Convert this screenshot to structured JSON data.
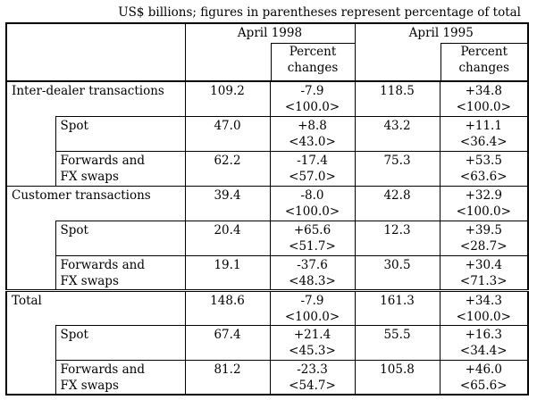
{
  "note": "US$ billions; figures in parentheses represent percentage of total",
  "headers": {
    "year1": "April 1998",
    "year2": "April 1995",
    "pc1_line1": "Percent",
    "pc1_line2": "changes",
    "pc2_line1": "Percent",
    "pc2_line2": "changes"
  },
  "rows": [
    {
      "label1": "Inter-dealer transactions",
      "label2": "",
      "v1": "109.2",
      "p1a": "-7.9",
      "p1b": "<100.0>",
      "v2": "118.5",
      "p2a": "+34.8",
      "p2b": "<100.0>"
    },
    {
      "label1": "Spot",
      "label2": "",
      "v1": "47.0",
      "p1a": "+8.8",
      "p1b": "<43.0>",
      "v2": "43.2",
      "p2a": "+11.1",
      "p2b": "<36.4>"
    },
    {
      "label1": "Forwards and",
      "label2": "FX swaps",
      "v1": "62.2",
      "p1a": "-17.4",
      "p1b": "<57.0>",
      "v2": "75.3",
      "p2a": "+53.5",
      "p2b": "<63.6>"
    },
    {
      "label1": "Customer transactions",
      "label2": "",
      "v1": "39.4",
      "p1a": "-8.0",
      "p1b": "<100.0>",
      "v2": "42.8",
      "p2a": "+32.9",
      "p2b": "<100.0>"
    },
    {
      "label1": "Spot",
      "label2": "",
      "v1": "20.4",
      "p1a": "+65.6",
      "p1b": "<51.7>",
      "v2": "12.3",
      "p2a": "+39.5",
      "p2b": "<28.7>"
    },
    {
      "label1": "Forwards and",
      "label2": "FX swaps",
      "v1": "19.1",
      "p1a": "-37.6",
      "p1b": "<48.3>",
      "v2": "30.5",
      "p2a": "+30.4",
      "p2b": "<71.3>"
    },
    {
      "label1": "Total",
      "label2": "",
      "v1": "148.6",
      "p1a": "-7.9",
      "p1b": "<100.0>",
      "v2": "161.3",
      "p2a": "+34.3",
      "p2b": "<100.0>"
    },
    {
      "label1": "Spot",
      "label2": "",
      "v1": "67.4",
      "p1a": "+21.4",
      "p1b": "<45.3>",
      "v2": "55.5",
      "p2a": "+16.3",
      "p2b": "<34.4>"
    },
    {
      "label1": "Forwards and",
      "label2": "FX swaps",
      "v1": "81.2",
      "p1a": "-23.3",
      "p1b": "<54.7>",
      "v2": "105.8",
      "p2a": "+46.0",
      "p2b": "<65.6>"
    }
  ]
}
